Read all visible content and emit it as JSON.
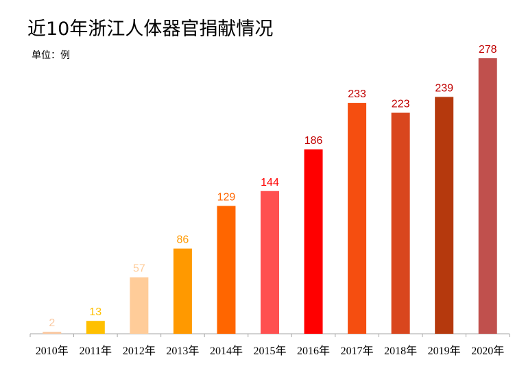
{
  "chart_data": {
    "type": "bar",
    "title": "近10年浙江人体器官捐献情况",
    "unit": "单位：例",
    "categories": [
      "2010年",
      "2011年",
      "2012年",
      "2013年",
      "2014年",
      "2015年",
      "2016年",
      "2017年",
      "2018年",
      "2019年",
      "2020年"
    ],
    "values": [
      2,
      13,
      57,
      86,
      129,
      144,
      186,
      233,
      223,
      239,
      278
    ],
    "bar_colors": [
      "#FAC9A2",
      "#FFC000",
      "#FFCC99",
      "#FF9900",
      "#FF6600",
      "#FF5050",
      "#FF0000",
      "#F54E10",
      "#D9461E",
      "#B5390D",
      "#C0504D"
    ],
    "label_colors": [
      "#FAC9A2",
      "#FFC000",
      "#FFCC99",
      "#FF9900",
      "#FF6600",
      "#FF0000",
      "#C00000",
      "#C00000",
      "#C00000",
      "#C00000",
      "#C00000"
    ],
    "ylim": [
      0,
      278
    ],
    "grid": false,
    "legend": "none"
  }
}
